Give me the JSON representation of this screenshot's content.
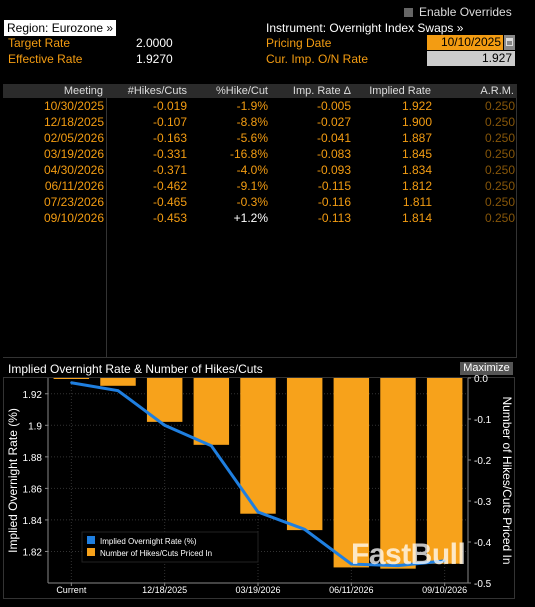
{
  "header": {
    "enable_overrides": "Enable Overrides",
    "region_label": "Region: Eurozone »",
    "instrument_label": "Instrument: Overnight Index Swaps »",
    "target_rate_label": "Target Rate",
    "target_rate_value": "2.0000",
    "effective_rate_label": "Effective Rate",
    "effective_rate_value": "1.9270",
    "pricing_date_label": "Pricing Date",
    "pricing_date_value": "10/10/2025",
    "cur_imp_label": "Cur. Imp. O/N Rate",
    "cur_imp_value": "1.927"
  },
  "table": {
    "columns": [
      "Meeting",
      "#Hikes/Cuts",
      "%Hike/Cut",
      "Imp. Rate Δ",
      "Implied Rate",
      "A.R.M."
    ],
    "rows": [
      {
        "meeting": "10/30/2025",
        "hikes": "-0.019",
        "pct": "-1.9%",
        "delta": "-0.005",
        "implied": "1.922",
        "arm": "0.250"
      },
      {
        "meeting": "12/18/2025",
        "hikes": "-0.107",
        "pct": "-8.8%",
        "delta": "-0.027",
        "implied": "1.900",
        "arm": "0.250"
      },
      {
        "meeting": "02/05/2026",
        "hikes": "-0.163",
        "pct": "-5.6%",
        "delta": "-0.041",
        "implied": "1.887",
        "arm": "0.250"
      },
      {
        "meeting": "03/19/2026",
        "hikes": "-0.331",
        "pct": "-16.8%",
        "delta": "-0.083",
        "implied": "1.845",
        "arm": "0.250"
      },
      {
        "meeting": "04/30/2026",
        "hikes": "-0.371",
        "pct": "-4.0%",
        "delta": "-0.093",
        "implied": "1.834",
        "arm": "0.250"
      },
      {
        "meeting": "06/11/2026",
        "hikes": "-0.462",
        "pct": "-9.1%",
        "delta": "-0.115",
        "implied": "1.812",
        "arm": "0.250"
      },
      {
        "meeting": "07/23/2026",
        "hikes": "-0.465",
        "pct": "-0.3%",
        "delta": "-0.116",
        "implied": "1.811",
        "arm": "0.250"
      },
      {
        "meeting": "09/10/2026",
        "hikes": "-0.453",
        "pct": "+1.2%",
        "delta": "-0.113",
        "implied": "1.814",
        "arm": "0.250"
      }
    ]
  },
  "chart": {
    "title": "Implied Overnight Rate & Number of Hikes/Cuts",
    "maximize_label": "Maximize",
    "watermark": "FastBull"
  },
  "colors": {
    "accent": "#f39c12",
    "line": "#1f7fe0",
    "bar": "#f7a21b"
  },
  "chart_data": {
    "type": "bar",
    "title": "Implied Overnight Rate & Number of Hikes/Cuts",
    "categories": [
      "Current",
      "10/30/2025",
      "12/18/2025",
      "02/05/2026",
      "03/19/2026",
      "04/30/2026",
      "06/11/2026",
      "07/23/2026",
      "09/10/2026"
    ],
    "x_tick_labels": [
      "Current",
      "12/18/2025",
      "03/19/2026",
      "06/11/2026",
      "09/10/2026"
    ],
    "series": [
      {
        "name": "Implied Overnight Rate (%)",
        "type": "line",
        "axis": "left",
        "values": [
          1.927,
          1.922,
          1.9,
          1.887,
          1.845,
          1.834,
          1.812,
          1.811,
          1.814
        ]
      },
      {
        "name": "Number of Hikes/Cuts Priced In",
        "type": "bar",
        "axis": "right",
        "values": [
          0,
          -0.019,
          -0.107,
          -0.163,
          -0.331,
          -0.371,
          -0.462,
          -0.465,
          -0.453
        ]
      }
    ],
    "ylabel": "Implied Overnight Rate (%)",
    "ylabel_right": "Number of Hikes/Cuts Priced In",
    "ylim": [
      1.8,
      1.93
    ],
    "yticks": [
      "1.92",
      "1.9",
      "1.88",
      "1.86",
      "1.84",
      "1.82"
    ],
    "ylim_right": [
      -0.5,
      0
    ],
    "yticks_right": [
      "0.0",
      "-0.1",
      "-0.2",
      "-0.3",
      "-0.4",
      "-0.5"
    ],
    "legend_position": "bottom-left",
    "grid": true
  }
}
